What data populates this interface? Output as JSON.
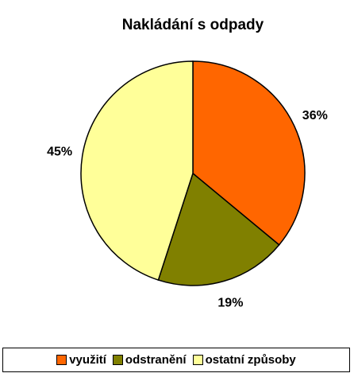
{
  "chart_data": {
    "type": "pie",
    "title": "Nakládání s odpady",
    "categories": [
      "využití",
      "odstranění",
      "ostatní způsoby"
    ],
    "values": [
      36,
      19,
      45
    ],
    "value_labels": [
      "36%",
      "19%",
      "45%"
    ],
    "colors": [
      "#ff6600",
      "#808000",
      "#ffff99"
    ],
    "legend": "bottom"
  }
}
